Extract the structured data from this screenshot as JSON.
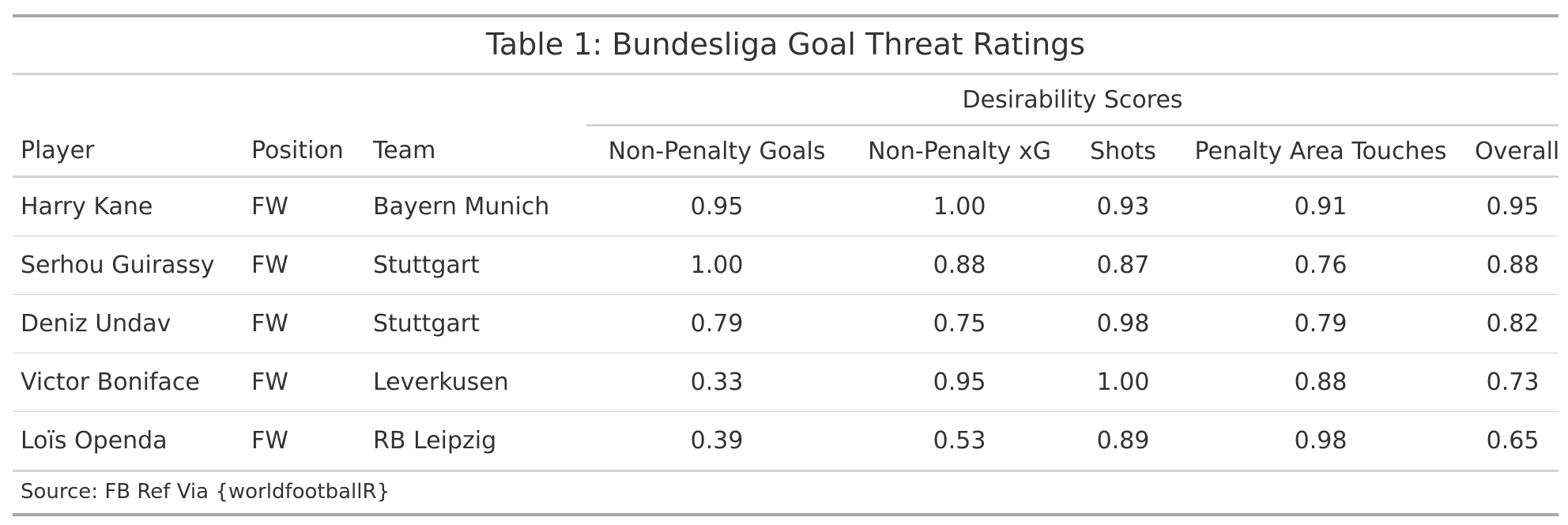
{
  "title": "Table 1: Bundesliga Goal Threat Ratings",
  "spanner": "Desirability Scores",
  "columns": [
    "Player",
    "Position",
    "Team",
    "Non-Penalty Goals",
    "Non-Penalty xG",
    "Shots",
    "Penalty Area Touches",
    "Overall"
  ],
  "rows": [
    [
      "Harry Kane",
      "FW",
      "Bayern Munich",
      "0.95",
      "1.00",
      "0.93",
      "0.91",
      "0.95"
    ],
    [
      "Serhou Guirassy",
      "FW",
      "Stuttgart",
      "1.00",
      "0.88",
      "0.87",
      "0.76",
      "0.88"
    ],
    [
      "Deniz Undav",
      "FW",
      "Stuttgart",
      "0.79",
      "0.75",
      "0.98",
      "0.79",
      "0.82"
    ],
    [
      "Victor Boniface",
      "FW",
      "Leverkusen",
      "0.33",
      "0.95",
      "1.00",
      "0.88",
      "0.73"
    ],
    [
      "Loïs Openda",
      "FW",
      "RB Leipzig",
      "0.39",
      "0.53",
      "0.89",
      "0.98",
      "0.65"
    ]
  ],
  "source": "Source: FB Ref Via {worldfootballR}"
}
